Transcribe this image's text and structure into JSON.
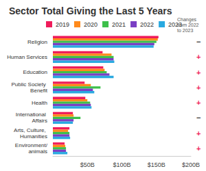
{
  "chart_data": {
    "type": "bar",
    "title": "Sector Total Giving the Last 5 Years",
    "orientation": "horizontal",
    "categories": [
      "Religion",
      "Human Services",
      "Education",
      "Public Society Benefit",
      "Health",
      "International Affairs",
      "Arts, Culture, Humanities",
      "Environment/animals"
    ],
    "series": [
      {
        "name": "2019",
        "color": "#ef1c5a",
        "values": [
          153,
          72,
          73,
          46,
          47,
          29,
          24,
          17
        ]
      },
      {
        "name": "2020",
        "color": "#ff8a1c",
        "values": [
          152,
          85,
          75,
          55,
          50,
          30,
          22,
          18
        ]
      },
      {
        "name": "2021",
        "color": "#3dbf4a",
        "values": [
          150,
          88,
          78,
          69,
          54,
          40,
          24,
          19
        ]
      },
      {
        "name": "2022",
        "color": "#7a3fc4",
        "values": [
          147,
          88,
          82,
          58,
          55,
          30,
          24,
          19
        ]
      },
      {
        "name": "2023",
        "color": "#2aa9e0",
        "values": [
          146,
          89,
          88,
          60,
          56,
          29,
          25,
          21
        ]
      }
    ],
    "xlim": [
      0,
      200
    ],
    "xticks": [
      {
        "value": 50,
        "label": "$50B"
      },
      {
        "value": 100,
        "label": "$100B"
      },
      {
        "value": 150,
        "label": "$150B"
      },
      {
        "value": 200,
        "label": "$200B"
      }
    ],
    "grid": false,
    "legend": "top",
    "changes": {
      "title": "Changes from 2022 to 2023",
      "marks": [
        "−",
        "+",
        "+",
        "+",
        "+",
        "−",
        "+",
        "+"
      ],
      "colors": [
        "#333333",
        "#ef1c5a",
        "#ef1c5a",
        "#ef1c5a",
        "#ef1c5a",
        "#333333",
        "#ef1c5a",
        "#ef1c5a"
      ]
    }
  }
}
